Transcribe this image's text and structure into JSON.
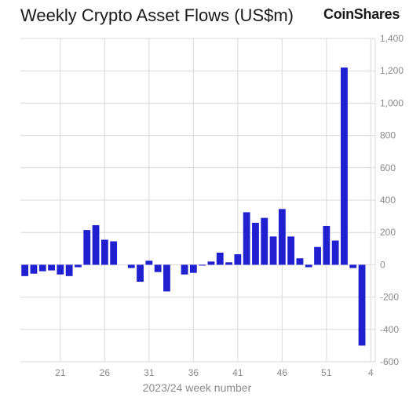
{
  "title": "Weekly Crypto Asset Flows (US$m)",
  "brand": "CoinShares",
  "chart_data": {
    "type": "bar",
    "title": "Weekly Crypto Asset Flows (US$m)",
    "xlabel": "2023/24 week number",
    "ylabel": "",
    "ylim": [
      -600,
      1400
    ],
    "yticks": [
      1400,
      1200,
      1000,
      800,
      600,
      400,
      200,
      0,
      -200,
      -400,
      -600
    ],
    "ytick_labels": [
      "1,400",
      "1,200",
      "1,000",
      "800",
      "600",
      "400",
      "200",
      "0",
      "-200",
      "-400",
      "-600"
    ],
    "xtick_labels": [
      "21",
      "26",
      "31",
      "36",
      "41",
      "46",
      "51",
      "4"
    ],
    "xtick_category_index": [
      4,
      9,
      14,
      19,
      24,
      29,
      34,
      39
    ],
    "grid": true,
    "bar_color": "#2020d0",
    "categories": [
      "17",
      "18",
      "19",
      "20",
      "21",
      "22",
      "23",
      "24",
      "25",
      "26",
      "27",
      "28",
      "29",
      "30",
      "31",
      "32",
      "33",
      "34",
      "35",
      "36",
      "37",
      "38",
      "39",
      "40",
      "41",
      "42",
      "43",
      "44",
      "45",
      "46",
      "47",
      "48",
      "49",
      "50",
      "51",
      "52",
      "1",
      "2",
      "3",
      "4"
    ],
    "values": [
      -70,
      -55,
      -40,
      -35,
      -60,
      -70,
      -15,
      215,
      245,
      155,
      145,
      0,
      -20,
      -105,
      25,
      -45,
      -165,
      0,
      -60,
      -50,
      -5,
      20,
      75,
      15,
      65,
      325,
      260,
      290,
      175,
      345,
      175,
      40,
      -15,
      110,
      240,
      150,
      1220,
      -20,
      -500,
      0
    ]
  }
}
